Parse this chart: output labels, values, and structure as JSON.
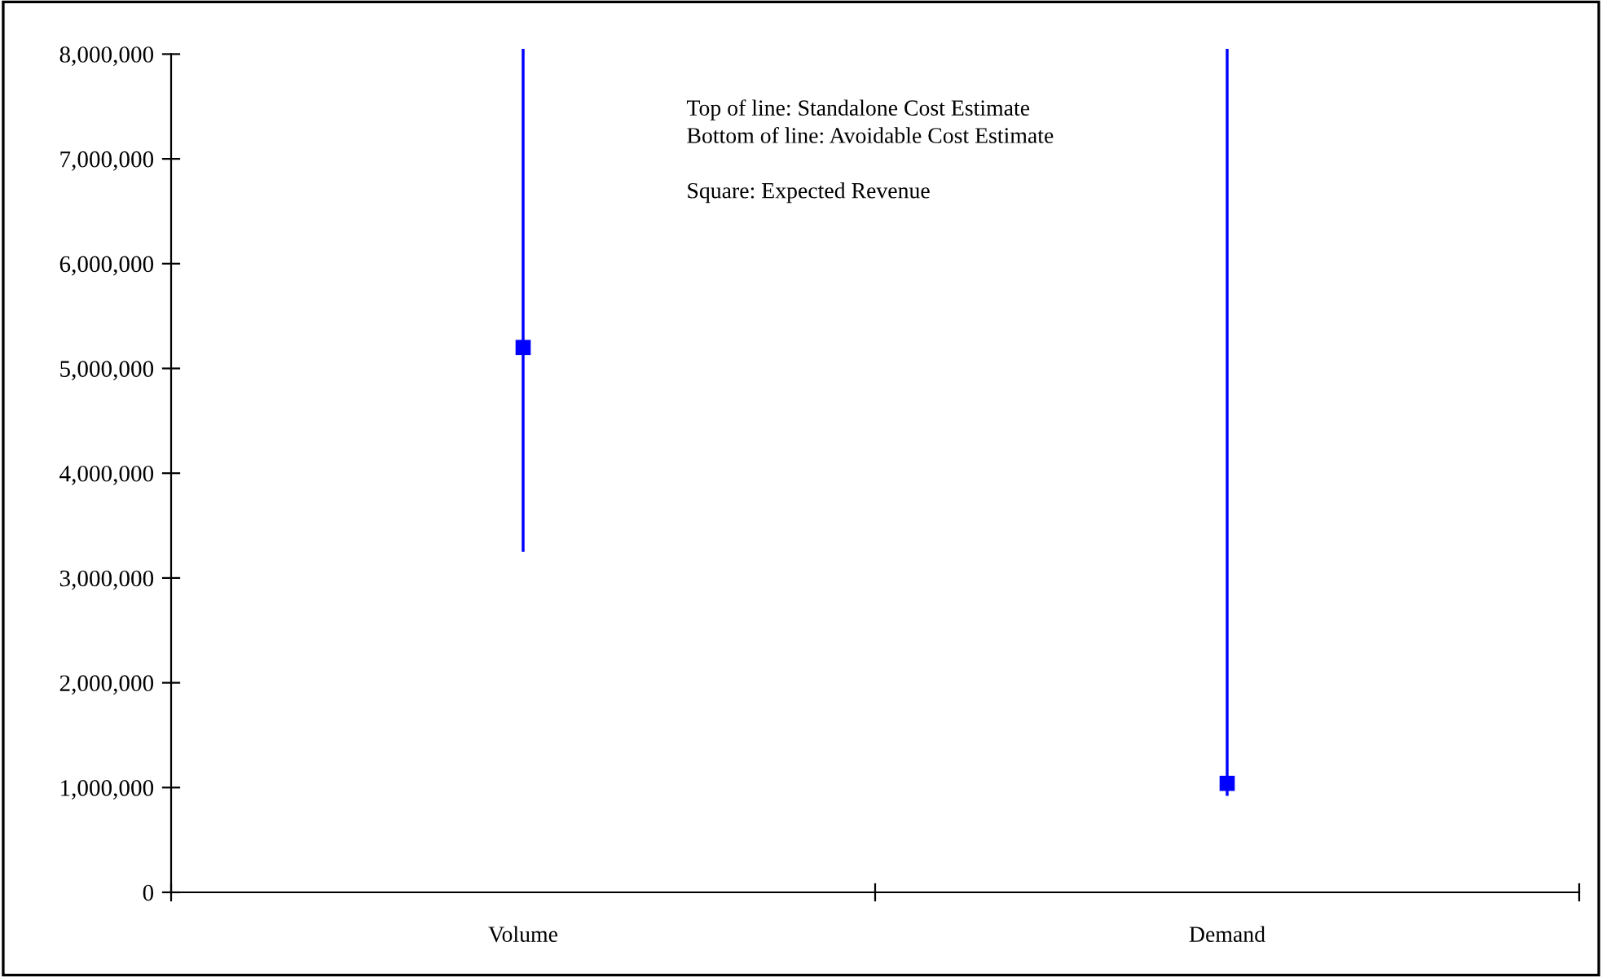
{
  "chart_data": {
    "type": "bar",
    "categories": [
      "Volume",
      "Demand"
    ],
    "series": [
      {
        "color": "#0000ff",
        "base": [
          3250000,
          920000
        ],
        "values": [
          4800000,
          7130000
        ]
      },
      {
        "type": "scatter",
        "color": "#0000ff",
        "marker": "square",
        "values": [
          5200000,
          1040000
        ]
      }
    ],
    "ylim": [
      0,
      8050000
    ],
    "yticks": [
      {
        "value": 0,
        "label": "0"
      },
      {
        "value": 1000000,
        "label": "1,000,000"
      },
      {
        "value": 2000000,
        "label": "2,000,000"
      },
      {
        "value": 3000000,
        "label": "3,000,000"
      },
      {
        "value": 4000000,
        "label": "4,000,000"
      },
      {
        "value": 5000000,
        "label": "5,000,000"
      },
      {
        "value": 6000000,
        "label": "6,000,000"
      },
      {
        "value": 7000000,
        "label": "7,000,000"
      },
      {
        "value": 8000000,
        "label": "8,000,000"
      }
    ],
    "grid": false,
    "legend": false,
    "annotations": [
      "Top of line: Standalone Cost Estimate\nBottom of line: Avoidable Cost Estimate\n\nSquare: Expected Revenue"
    ]
  }
}
